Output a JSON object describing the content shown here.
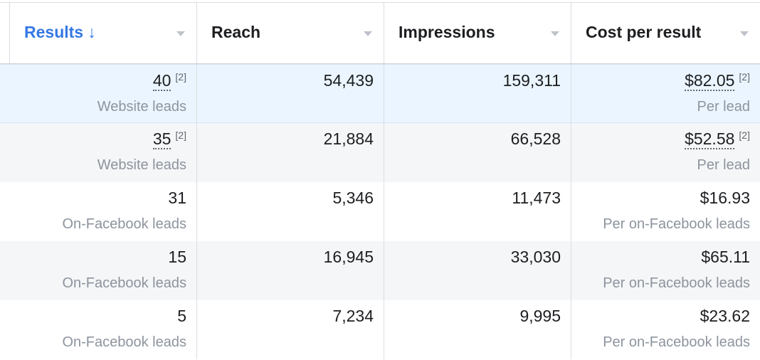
{
  "header": {
    "columns": [
      {
        "label": "Results",
        "sorted": true,
        "sort_glyph": "↓"
      },
      {
        "label": "Reach"
      },
      {
        "label": "Impressions"
      },
      {
        "label": "Cost per result"
      }
    ]
  },
  "rows": [
    {
      "results": "40",
      "results_note": "[2]",
      "results_type": "Website leads",
      "reach": "54,439",
      "impressions": "159,311",
      "cost": "$82.05",
      "cost_note": "[2]",
      "cost_type": "Per lead"
    },
    {
      "results": "35",
      "results_note": "[2]",
      "results_type": "Website leads",
      "reach": "21,884",
      "impressions": "66,528",
      "cost": "$52.58",
      "cost_note": "[2]",
      "cost_type": "Per lead"
    },
    {
      "results": "31",
      "results_type": "On-Facebook leads",
      "reach": "5,346",
      "impressions": "11,473",
      "cost": "$16.93",
      "cost_type": "Per on-Facebook leads"
    },
    {
      "results": "15",
      "results_type": "On-Facebook leads",
      "reach": "16,945",
      "impressions": "33,030",
      "cost": "$65.11",
      "cost_type": "Per on-Facebook leads"
    },
    {
      "results": "5",
      "results_type": "On-Facebook leads",
      "reach": "7,234",
      "impressions": "9,995",
      "cost": "$23.62",
      "cost_type": "Per on-Facebook leads"
    }
  ],
  "colors": {
    "accent": "#3578e5",
    "highlight_row": "#ebf5ff",
    "alt_row": "#f5f6f7"
  }
}
